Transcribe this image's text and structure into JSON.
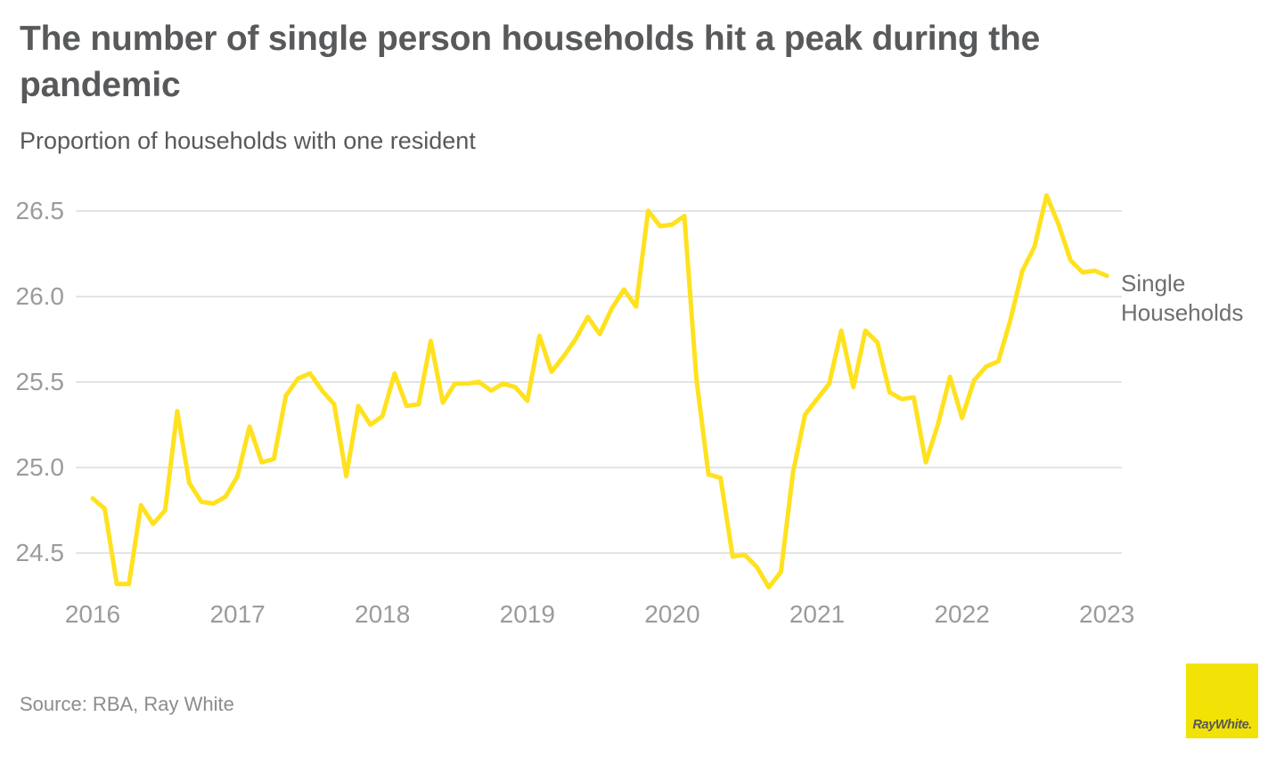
{
  "header": {
    "title": "The number of single person households hit a peak during the pandemic",
    "subtitle": "Proportion of households with one resident"
  },
  "footer": {
    "source": "Source: RBA, Ray White"
  },
  "logo": {
    "name": "Ray White logo",
    "ray": "Ray",
    "white": "White",
    "mark": ".",
    "bg_color": "#F2E205",
    "text_color": "#575756"
  },
  "chart_data": {
    "type": "line",
    "title": "The number of single person households hit a peak during the pandemic",
    "subtitle": "Proportion of households with one resident",
    "x_tick_labels": [
      "2016",
      "2017",
      "2018",
      "2019",
      "2020",
      "2021",
      "2022",
      "2023"
    ],
    "y_ticks": [
      26.5,
      26.0,
      25.5,
      25.0,
      24.5
    ],
    "y_tick_labels": [
      "26.5",
      "26.0",
      "25.5",
      "25.0",
      "24.5"
    ],
    "ylim": [
      24.2,
      26.7
    ],
    "grid": "horizontal-only",
    "x_frequency": "monthly",
    "x_start": "2016-01",
    "x_end": "2023-01",
    "legend": {
      "label": "Single Households",
      "position": "right of line end"
    },
    "series": [
      {
        "name": "Single Households",
        "color": "#FFE11E",
        "values": [
          24.82,
          24.76,
          24.32,
          24.32,
          24.78,
          24.67,
          24.75,
          25.33,
          24.91,
          24.8,
          24.79,
          24.83,
          24.95,
          25.24,
          25.03,
          25.05,
          25.42,
          25.52,
          25.55,
          25.45,
          25.37,
          24.95,
          25.36,
          25.25,
          25.3,
          25.55,
          25.36,
          25.37,
          25.74,
          25.38,
          25.49,
          25.49,
          25.5,
          25.45,
          25.49,
          25.47,
          25.39,
          25.77,
          25.56,
          25.65,
          25.75,
          25.88,
          25.78,
          25.93,
          26.04,
          25.94,
          26.5,
          26.41,
          26.42,
          26.47,
          25.52,
          24.96,
          24.94,
          24.48,
          24.49,
          24.42,
          24.3,
          24.39,
          24.97,
          25.31,
          25.4,
          25.49,
          25.8,
          25.47,
          25.8,
          25.73,
          25.44,
          25.4,
          25.41,
          25.03,
          25.25,
          25.53,
          25.29,
          25.51,
          25.59,
          25.62,
          25.86,
          26.15,
          26.29,
          26.59,
          26.42,
          26.21,
          26.14,
          26.15,
          26.12
        ]
      }
    ]
  }
}
